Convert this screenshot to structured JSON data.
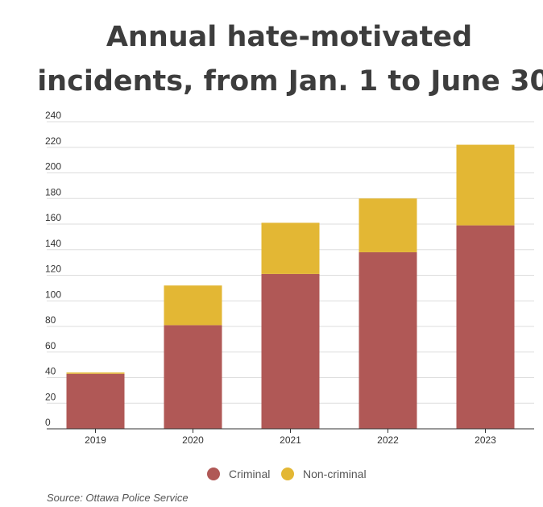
{
  "chart_data": {
    "type": "bar",
    "stacked": true,
    "title": "Annual hate-motivated incidents, from Jan. 1 to June 30",
    "title_lines": [
      "Annual hate-motivated",
      "incidents, from Jan. 1 to June 30"
    ],
    "categories": [
      "2019",
      "2020",
      "2021",
      "2022",
      "2023"
    ],
    "series": [
      {
        "name": "Criminal",
        "values": [
          43,
          81,
          121,
          138,
          159
        ],
        "color": "#b05856"
      },
      {
        "name": "Non-criminal",
        "values": [
          1,
          31,
          40,
          42,
          63
        ],
        "color": "#e3b734"
      }
    ],
    "ylim": [
      0,
      240
    ],
    "yticks": [
      0,
      20,
      40,
      60,
      80,
      100,
      120,
      140,
      160,
      180,
      200,
      220,
      240
    ],
    "xlabel": "",
    "ylabel": "",
    "grid": true,
    "legend": "bottom-center",
    "source": "Source: Ottawa Police Service"
  }
}
